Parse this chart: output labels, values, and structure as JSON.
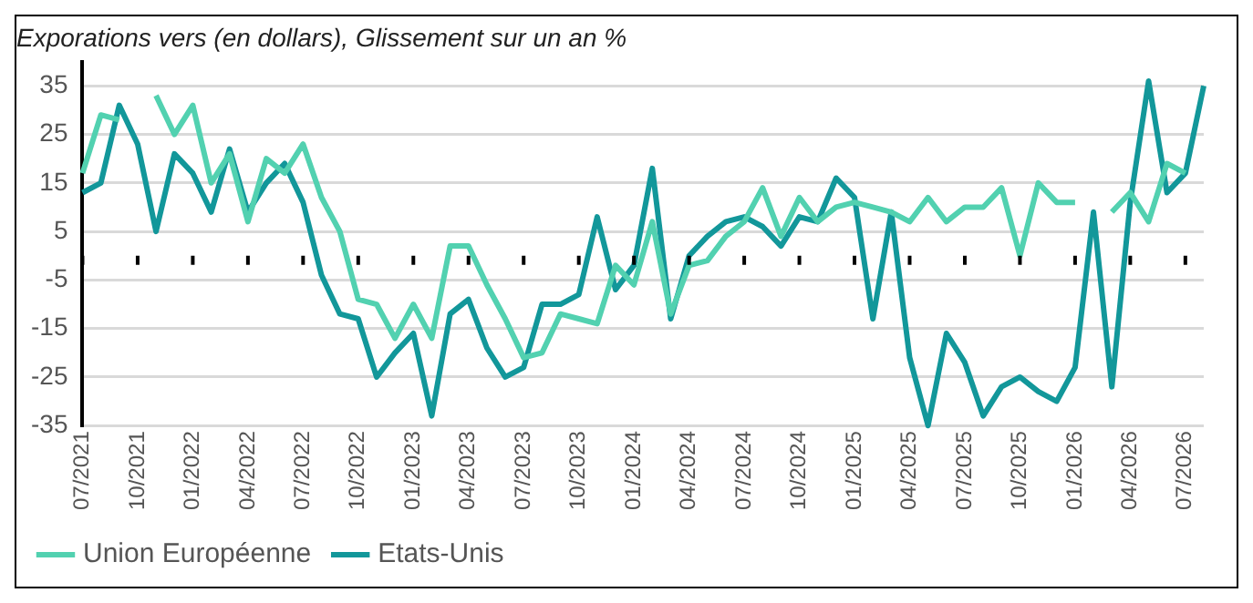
{
  "chart_data": {
    "type": "line",
    "title": "Exporations vers (en dollars), Glissement sur un an %",
    "categories": [
      "07/2021",
      null,
      null,
      "10/2021",
      null,
      null,
      "01/2022",
      null,
      null,
      "04/2022",
      null,
      null,
      "07/2022",
      null,
      null,
      "10/2022",
      null,
      null,
      "01/2023",
      null,
      null,
      "04/2023",
      null,
      null,
      "07/2023",
      null,
      null,
      "10/2023",
      null,
      null,
      "01/2024",
      null,
      null,
      "04/2024",
      null,
      null,
      "07/2024",
      null,
      null,
      "10/2024",
      null,
      null,
      "01/2025",
      null,
      null,
      "04/2025",
      null,
      null,
      "07/2025",
      null,
      null,
      "10/2025",
      null,
      null,
      "01/2026",
      null,
      null,
      "04/2026",
      null,
      null,
      "07/2026",
      null
    ],
    "series": [
      {
        "name": "Union Européenne",
        "color": "#52d1b0",
        "values": [
          17,
          29,
          28,
          null,
          33,
          25,
          31,
          15,
          21,
          7,
          20,
          17,
          23,
          12,
          5,
          -9,
          -10,
          -17,
          -10,
          -17,
          2,
          2,
          -6,
          -13,
          -21,
          -20,
          -12,
          -13,
          -14,
          -2,
          -6,
          7,
          -12,
          -2,
          -1,
          4,
          7,
          14,
          4,
          12,
          7,
          10,
          11,
          10,
          9,
          7,
          12,
          7,
          10,
          10,
          14,
          0,
          15,
          11,
          11,
          null,
          9,
          13,
          7,
          19,
          17,
          null
        ]
      },
      {
        "name": "Etats-Unis",
        "color": "#12979a",
        "values": [
          13,
          15,
          31,
          23,
          5,
          21,
          17,
          9,
          22,
          9,
          15,
          19,
          11,
          -4,
          -12,
          -13,
          -25,
          -20,
          -16,
          -33,
          -12,
          -9,
          -19,
          -25,
          -23,
          -10,
          -10,
          -8,
          8,
          -7,
          -2,
          18,
          -13,
          0,
          4,
          7,
          8,
          6,
          2,
          8,
          7,
          16,
          12,
          -13,
          9,
          -21,
          -35,
          -16,
          -22,
          -33,
          -27,
          -25,
          -28,
          -30,
          -23,
          9,
          -27,
          11,
          36,
          13,
          17,
          35
        ]
      }
    ],
    "ylim": [
      -35,
      40
    ],
    "yticks": [
      -35,
      -25,
      -15,
      -5,
      5,
      15,
      25,
      35
    ],
    "grid": "y",
    "legend": "bottom left",
    "marker": "none",
    "line_style": "solid"
  }
}
